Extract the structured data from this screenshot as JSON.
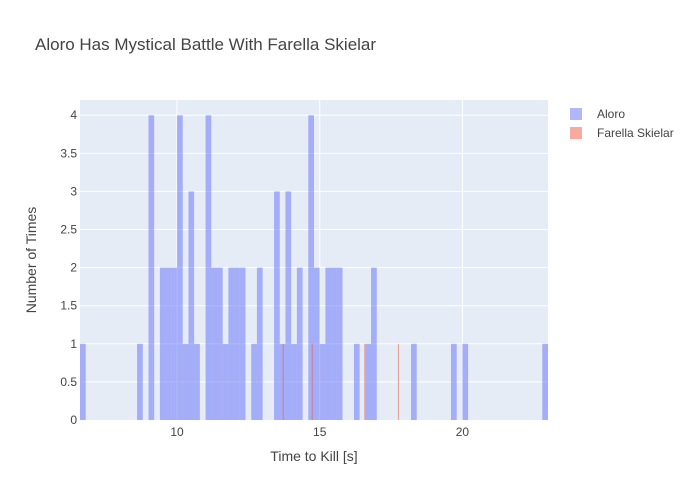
{
  "chart_data": {
    "type": "bar",
    "title": "Aloro Has Mystical Battle With Farella Skielar",
    "xlabel": "Time to Kill [s]",
    "ylabel": "Number of Times",
    "xlim": [
      6.6,
      23.0
    ],
    "ylim": [
      0,
      4.2
    ],
    "x_ticks": [
      10,
      15,
      20
    ],
    "y_ticks": [
      0,
      0.5,
      1,
      1.5,
      2,
      2.5,
      3,
      3.5,
      4
    ],
    "grid": true,
    "legend_position": "top-right",
    "series": [
      {
        "name": "Aloro",
        "color": "#636efa",
        "opacity": 0.5,
        "bins": [
          {
            "x0": 6.6,
            "x1": 6.8,
            "count": 1
          },
          {
            "x0": 8.6,
            "x1": 8.8,
            "count": 1
          },
          {
            "x0": 9.0,
            "x1": 9.2,
            "count": 4
          },
          {
            "x0": 9.4,
            "x1": 9.6,
            "count": 2
          },
          {
            "x0": 9.6,
            "x1": 9.8,
            "count": 2
          },
          {
            "x0": 9.8,
            "x1": 10.0,
            "count": 2
          },
          {
            "x0": 10.0,
            "x1": 10.2,
            "count": 4
          },
          {
            "x0": 10.2,
            "x1": 10.4,
            "count": 1
          },
          {
            "x0": 10.4,
            "x1": 10.6,
            "count": 3
          },
          {
            "x0": 10.6,
            "x1": 10.8,
            "count": 1
          },
          {
            "x0": 11.0,
            "x1": 11.2,
            "count": 4
          },
          {
            "x0": 11.2,
            "x1": 11.4,
            "count": 2
          },
          {
            "x0": 11.4,
            "x1": 11.6,
            "count": 2
          },
          {
            "x0": 11.6,
            "x1": 11.8,
            "count": 1
          },
          {
            "x0": 11.8,
            "x1": 12.0,
            "count": 2
          },
          {
            "x0": 12.0,
            "x1": 12.2,
            "count": 2
          },
          {
            "x0": 12.2,
            "x1": 12.4,
            "count": 2
          },
          {
            "x0": 12.6,
            "x1": 12.8,
            "count": 1
          },
          {
            "x0": 12.8,
            "x1": 13.0,
            "count": 2
          },
          {
            "x0": 13.4,
            "x1": 13.6,
            "count": 3
          },
          {
            "x0": 13.6,
            "x1": 13.8,
            "count": 1
          },
          {
            "x0": 13.8,
            "x1": 14.0,
            "count": 3
          },
          {
            "x0": 14.0,
            "x1": 14.2,
            "count": 1
          },
          {
            "x0": 14.2,
            "x1": 14.4,
            "count": 2
          },
          {
            "x0": 14.6,
            "x1": 14.8,
            "count": 4
          },
          {
            "x0": 14.8,
            "x1": 15.0,
            "count": 2
          },
          {
            "x0": 15.0,
            "x1": 15.2,
            "count": 1
          },
          {
            "x0": 15.2,
            "x1": 15.4,
            "count": 2
          },
          {
            "x0": 15.4,
            "x1": 15.6,
            "count": 2
          },
          {
            "x0": 15.6,
            "x1": 15.8,
            "count": 2
          },
          {
            "x0": 16.2,
            "x1": 16.4,
            "count": 1
          },
          {
            "x0": 16.6,
            "x1": 16.8,
            "count": 1
          },
          {
            "x0": 16.8,
            "x1": 17.0,
            "count": 2
          },
          {
            "x0": 18.2,
            "x1": 18.4,
            "count": 1
          },
          {
            "x0": 19.6,
            "x1": 19.8,
            "count": 1
          },
          {
            "x0": 20.0,
            "x1": 20.2,
            "count": 1
          },
          {
            "x0": 22.8,
            "x1": 23.0,
            "count": 1
          }
        ]
      },
      {
        "name": "Farella Skielar",
        "color": "#ef553b",
        "opacity": 0.5,
        "bins": [
          {
            "x0": 13.7,
            "x1": 13.74,
            "count": 1
          },
          {
            "x0": 14.72,
            "x1": 14.76,
            "count": 1
          },
          {
            "x0": 16.56,
            "x1": 16.6,
            "count": 1
          },
          {
            "x0": 17.74,
            "x1": 17.78,
            "count": 1
          }
        ]
      }
    ]
  }
}
